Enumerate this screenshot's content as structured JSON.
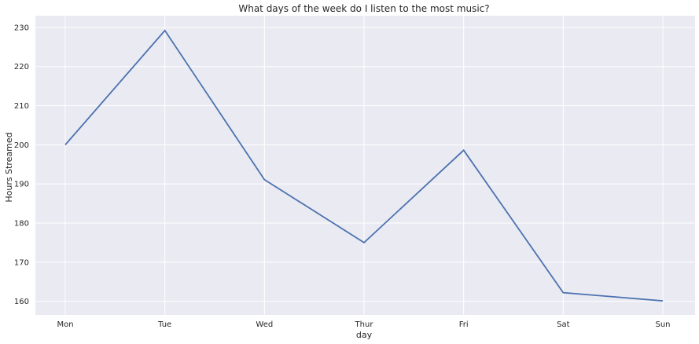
{
  "chart_data": {
    "type": "line",
    "title": "What days of the week do I listen to the most music?",
    "xlabel": "day",
    "ylabel": "Hours Streamed",
    "categories": [
      "Mon",
      "Tue",
      "Wed",
      "Thur",
      "Fri",
      "Sat",
      "Sun"
    ],
    "series": [
      {
        "values": [
          200.0,
          229.2,
          191.1,
          175.0,
          198.6,
          162.2,
          160.1
        ]
      }
    ],
    "ylim": [
      156.5,
      233.0
    ],
    "yticks": [
      160,
      170,
      180,
      190,
      200,
      210,
      220,
      230
    ],
    "grid": true,
    "colors": {
      "background": "#eaeaf2",
      "grid": "#ffffff",
      "line": "#4c72b0"
    }
  }
}
